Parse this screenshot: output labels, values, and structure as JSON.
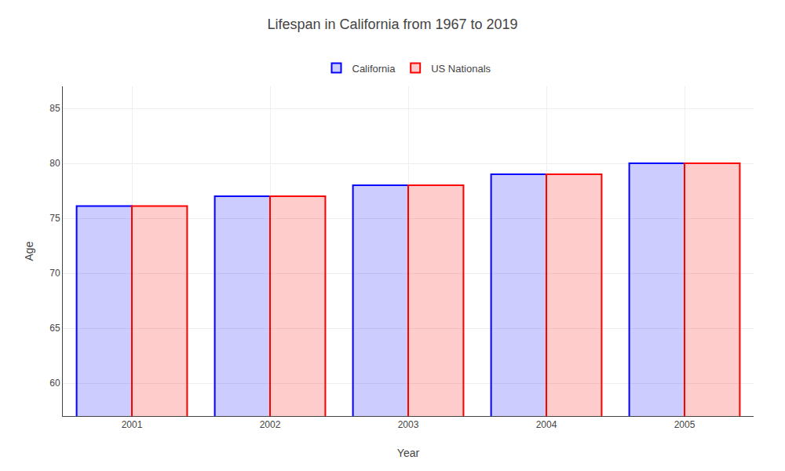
{
  "chart_data": {
    "type": "bar",
    "title": "Lifespan in California from 1967 to 2019",
    "xlabel": "Year",
    "ylabel": "Age",
    "categories": [
      "2001",
      "2002",
      "2003",
      "2004",
      "2005"
    ],
    "series": [
      {
        "name": "California",
        "color": "#0000ff",
        "values": [
          76.1,
          77.0,
          78.0,
          79.0,
          80.0
        ]
      },
      {
        "name": "US Nationals",
        "color": "#ff0000",
        "values": [
          76.1,
          77.0,
          78.0,
          79.0,
          80.0
        ]
      }
    ],
    "ylim": [
      57,
      87
    ],
    "yticks": [
      60,
      65,
      70,
      75,
      80,
      85
    ],
    "grid": true,
    "legend": "top"
  }
}
